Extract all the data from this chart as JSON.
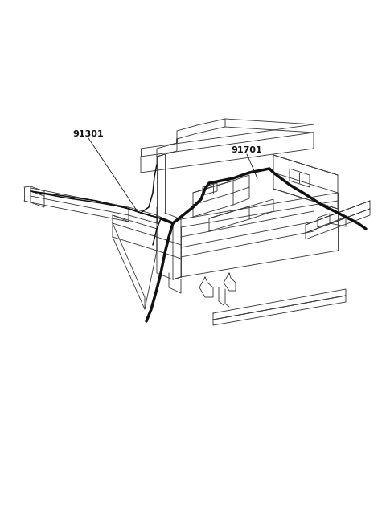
{
  "background_color": "#ffffff",
  "line_color": "#3a3a3a",
  "thick_color": "#111111",
  "label_91301": "91301",
  "label_91701": "91701",
  "figsize": [
    4.8,
    6.55
  ],
  "dpi": 100,
  "lw_thin": 0.65,
  "lw_med": 1.1,
  "lw_thick": 2.5
}
